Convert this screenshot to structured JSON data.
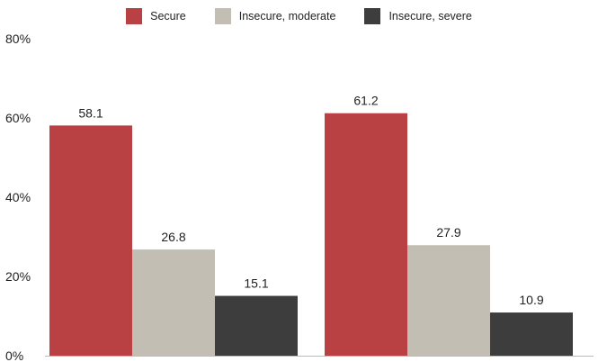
{
  "chart_data": {
    "type": "bar",
    "categories": [
      "",
      ""
    ],
    "series": [
      {
        "name": "Secure",
        "values": [
          58.1,
          61.2
        ],
        "color": "#b94144"
      },
      {
        "name": "Insecure, moderate",
        "values": [
          26.8,
          27.9
        ],
        "color": "#c3beb3"
      },
      {
        "name": "Insecure, severe",
        "values": [
          15.1,
          10.9
        ],
        "color": "#3d3d3d"
      }
    ],
    "ylim": [
      0,
      80
    ],
    "yticks": [
      0,
      20,
      40,
      60,
      80
    ],
    "ytick_labels": [
      "0%",
      "20%",
      "40%",
      "60%",
      "80%"
    ],
    "data_labels": [
      [
        "58.1",
        "61.2"
      ],
      [
        "26.8",
        "27.9"
      ],
      [
        "15.1",
        "10.9"
      ]
    ],
    "legend_position": "top-center",
    "grid": false
  }
}
